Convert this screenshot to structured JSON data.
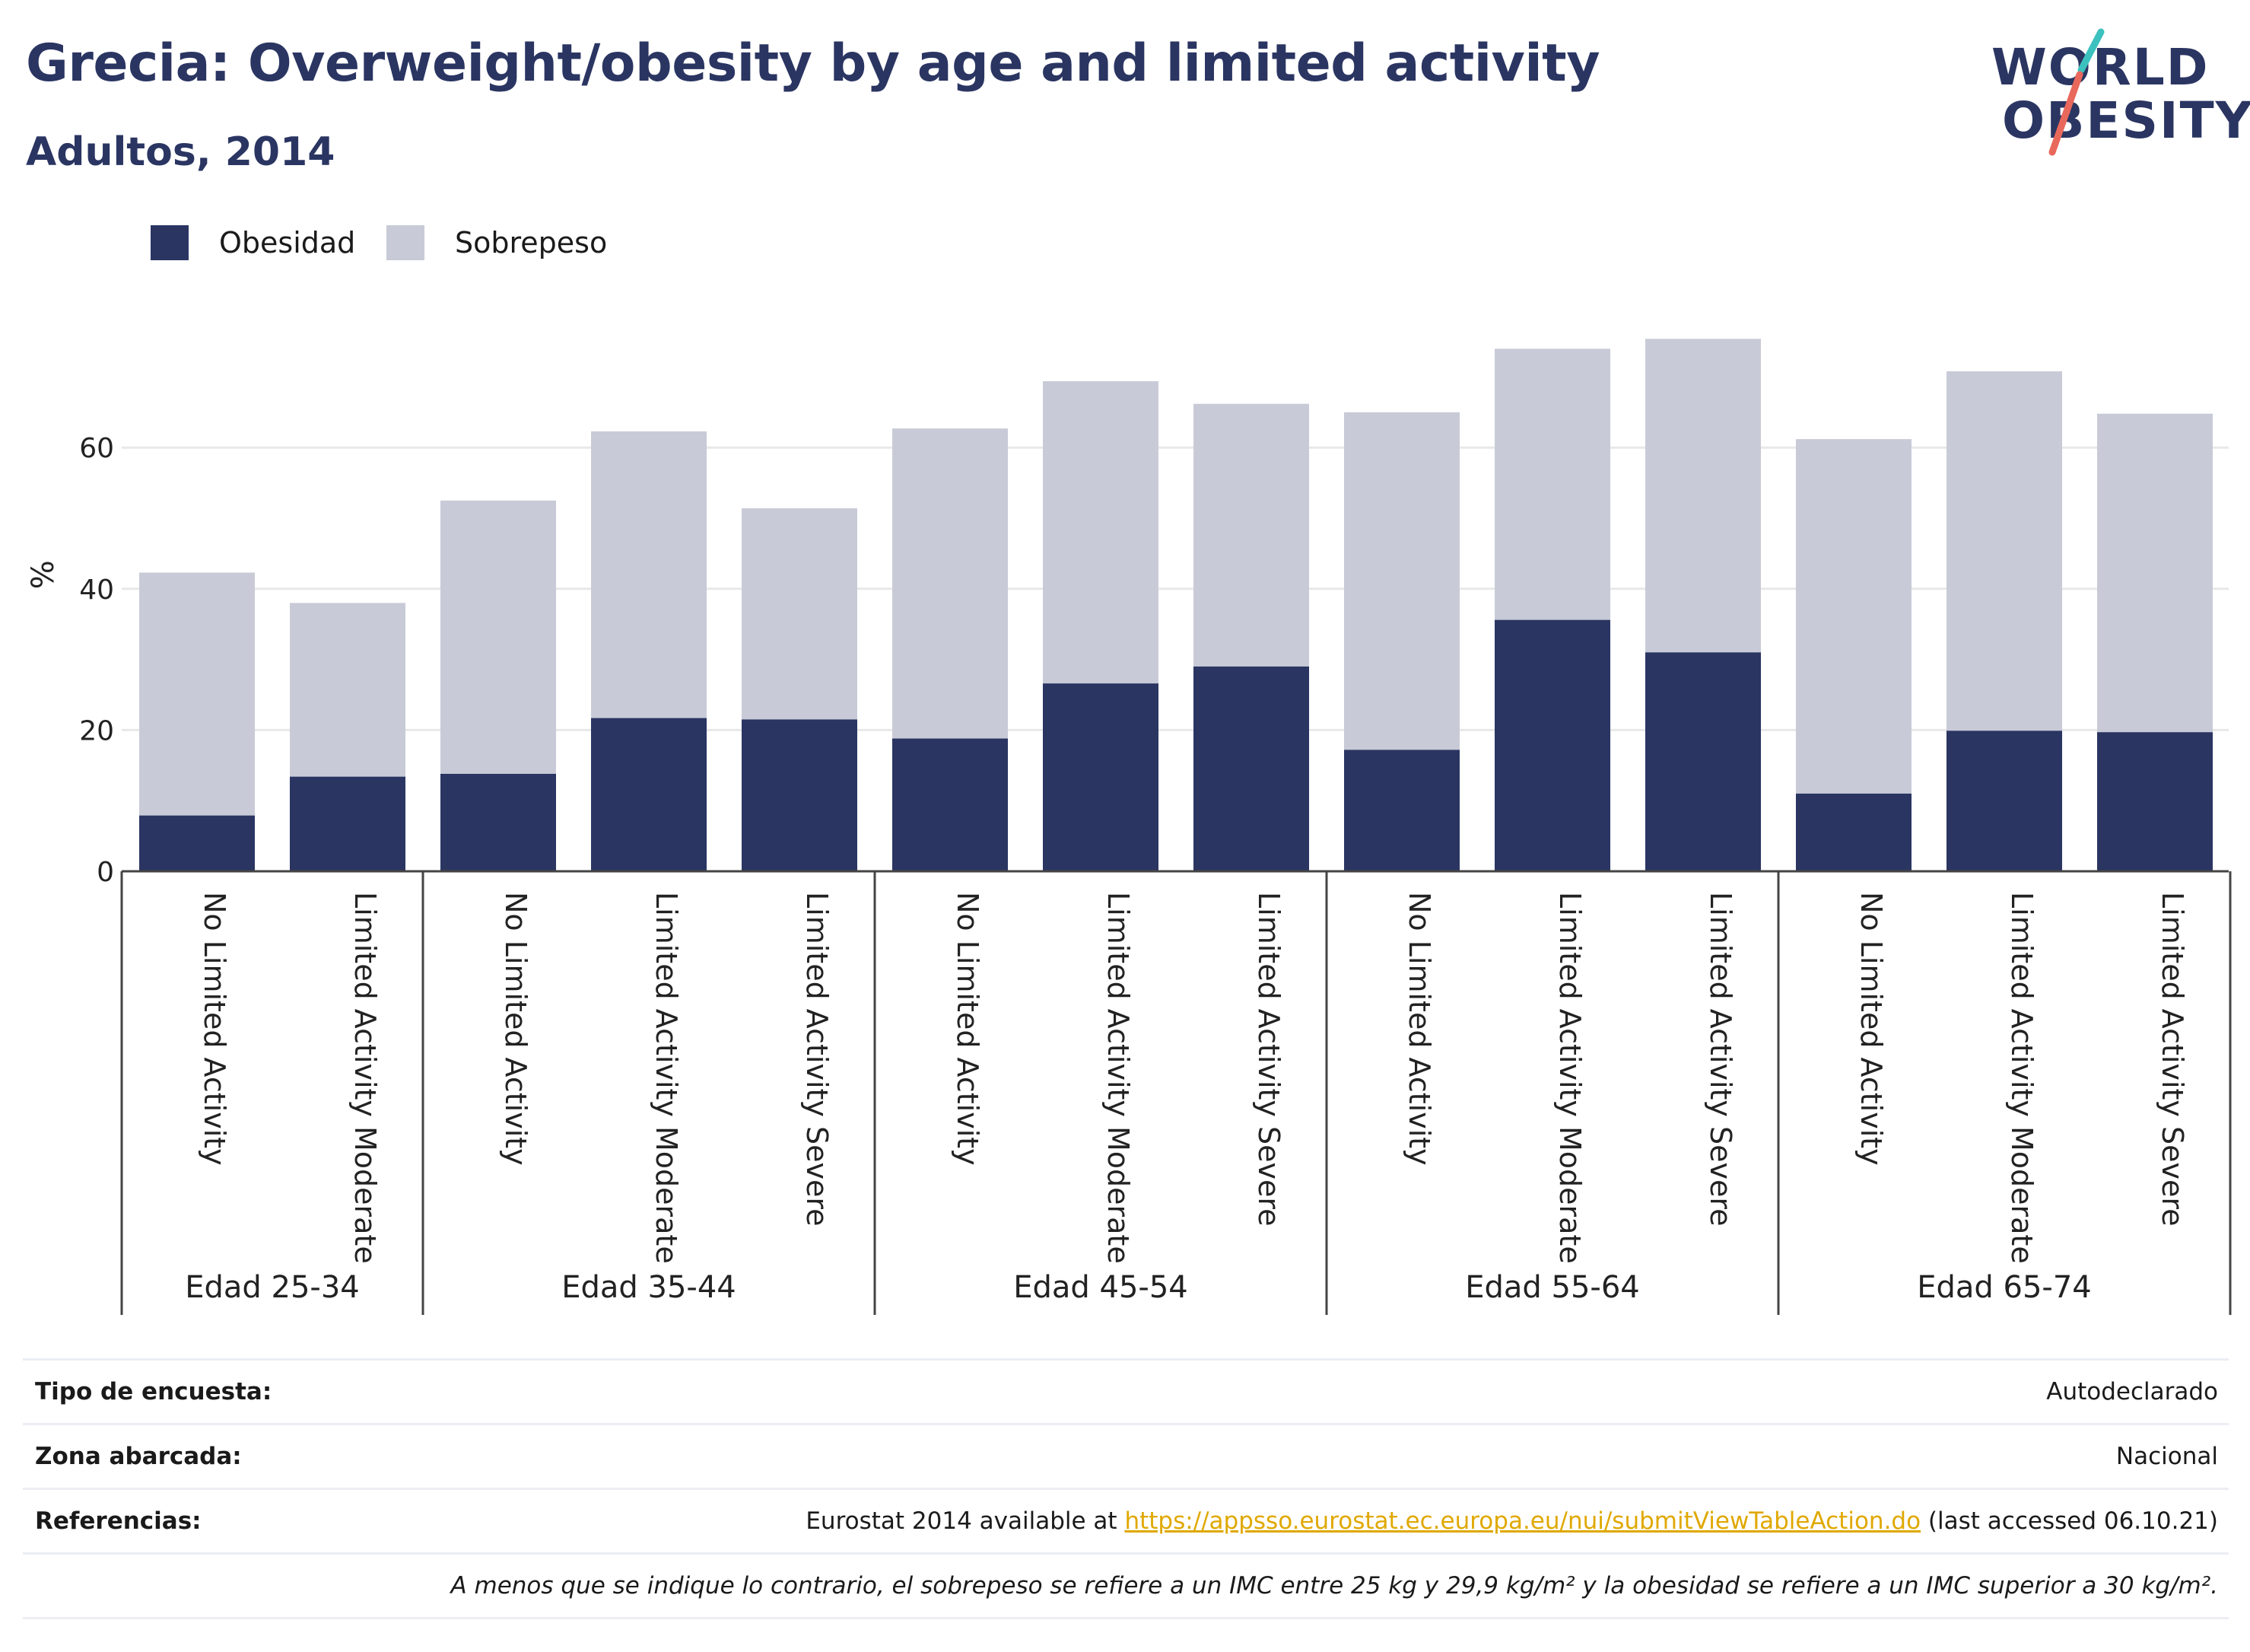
{
  "title": "Grecia: Overweight/obesity by age and limited activity",
  "subtitle": "Adultos, 2014",
  "logo": {
    "line1": "WORLD",
    "line2": "OBESITY",
    "accent_teal": "#3cc1bf",
    "accent_red": "#e8685c"
  },
  "colors": {
    "obesidad": "#2a3562",
    "sobrepeso": "#c8cbd7",
    "axis": "#444444",
    "grid": "#e8e8e8"
  },
  "chart_data": {
    "type": "bar",
    "stacked": true,
    "ylabel": "%",
    "ylim": [
      0,
      80
    ],
    "yticks": [
      0,
      20,
      40,
      60
    ],
    "grid": true,
    "legend_position": "top-left",
    "groups": [
      {
        "label": "Edad 25-34",
        "categories": [
          "No Limited Activity",
          "Limited Activity Moderate"
        ]
      },
      {
        "label": "Edad 35-44",
        "categories": [
          "No Limited Activity",
          "Limited Activity Moderate",
          "Limited Activity Severe"
        ]
      },
      {
        "label": "Edad 45-54",
        "categories": [
          "No Limited Activity",
          "Limited Activity Moderate",
          "Limited Activity Severe"
        ]
      },
      {
        "label": "Edad 55-64",
        "categories": [
          "No Limited Activity",
          "Limited Activity Moderate",
          "Limited Activity Severe"
        ]
      },
      {
        "label": "Edad 65-74",
        "categories": [
          "No Limited Activity",
          "Limited Activity Moderate",
          "Limited Activity Severe"
        ]
      }
    ],
    "series": [
      {
        "name": "Obesidad",
        "values": [
          7.9,
          13.4,
          13.8,
          21.7,
          21.5,
          18.8,
          26.6,
          29.0,
          17.2,
          35.6,
          31.0,
          11.0,
          19.9,
          19.7
        ]
      },
      {
        "name": "Sobrepeso",
        "values": [
          34.4,
          24.6,
          38.7,
          40.6,
          29.9,
          43.9,
          42.8,
          37.2,
          47.8,
          38.4,
          44.4,
          50.2,
          50.9,
          45.1
        ]
      }
    ]
  },
  "info": {
    "survey_label": "Tipo de encuesta:",
    "survey_value": "Autodeclarado",
    "area_label": "Zona abarcada:",
    "area_value": "Nacional",
    "ref_label": "Referencias:",
    "ref_prefix": "Eurostat 2014 available at ",
    "ref_link": "https://appsso.eurostat.ec.europa.eu/nui/submitViewTableAction.do",
    "ref_suffix": " (last accessed 06.10.21)",
    "footnote": "A menos que se indique lo contrario, el sobrepeso se refiere a un IMC entre 25 kg y 29,9 kg/m² y la obesidad se refiere a un IMC superior a 30 kg/m²."
  }
}
